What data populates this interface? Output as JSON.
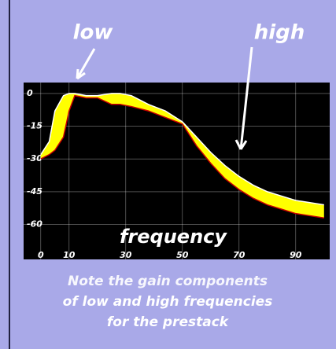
{
  "chart_data": {
    "type": "line",
    "annotations": {
      "low": "low",
      "high": "high",
      "x_label": "frequency",
      "note": [
        "Note the gain components",
        "of low and high frequencies",
        "for the prestack"
      ]
    },
    "fill_color": "#ffff00",
    "x": [
      0,
      3,
      5,
      8,
      10,
      12,
      16,
      20,
      25,
      28,
      32,
      38,
      44,
      50,
      55,
      60,
      65,
      70,
      75,
      80,
      85,
      90,
      95,
      100
    ],
    "series": [
      {
        "color": "#ffffff",
        "values": [
          -28,
          -22,
          -8,
          -1,
          0,
          0,
          -1,
          -1,
          0,
          0,
          -1,
          -5,
          -8,
          -13,
          -20,
          -27,
          -33,
          -38,
          -42,
          -45,
          -47,
          -49,
          -50,
          -51
        ]
      },
      {
        "color": "#cc0000",
        "values": [
          -30,
          -28,
          -26,
          -20,
          -8,
          -1,
          -2,
          -2,
          -5,
          -5,
          -6,
          -8,
          -11,
          -14,
          -24,
          -32,
          -39,
          -44,
          -48,
          -51,
          -53,
          -55,
          -56,
          -57
        ]
      }
    ],
    "xlim": [
      -3,
      102
    ],
    "xticks": [
      0,
      10,
      30,
      50,
      70,
      90
    ],
    "ylim": [
      -76,
      5
    ],
    "yticks": [
      0,
      -15,
      -30,
      -45,
      -60
    ],
    "grid": true
  }
}
